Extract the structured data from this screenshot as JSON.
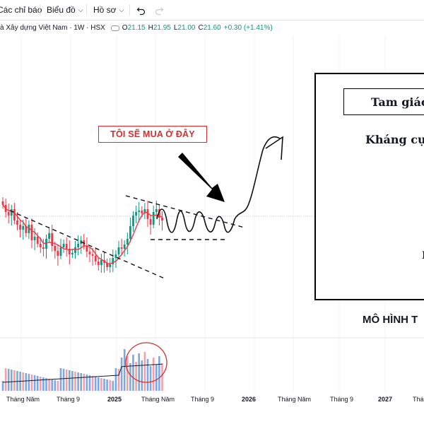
{
  "toolbar": {
    "indicators_label": "Các chỉ báo",
    "chart_label": "Biểu đồ",
    "profile_label": "Hồ sơ",
    "undo_icon": "undo-icon",
    "redo_icon": "redo-icon"
  },
  "legend": {
    "title": "à Xây dựng Việt Nam · 1W · HSX",
    "open_key": "O",
    "open": "21.15",
    "high_key": "H",
    "high": "21.95",
    "low_key": "L",
    "low": "21.00",
    "close_key": "C",
    "close": "21.60",
    "change": "+0.30 (+1.41%)",
    "up_color": "#089981"
  },
  "axis": {
    "labels": [
      "Tháng Năm",
      "Tháng 9",
      "2025",
      "Tháng Năm",
      "Tháng 9",
      "2026",
      "Tháng Năm",
      "Tháng 9",
      "2027",
      "Tháng"
    ]
  },
  "annotation": {
    "buy_text": "TÔI SẼ MUA Ở ĐÂY",
    "color": "#d32f2f"
  },
  "image_panel": {
    "title": "Tam giác",
    "resistance_label": "Kháng cự",
    "support_label_partial": "I"
  },
  "caption": "MÔ HÌNH T",
  "chart_data": {
    "type": "candlestick",
    "series_color_up": "#089981",
    "series_color_down": "#f23645",
    "ma_color": "#f23645",
    "volume_up_color": "#7ea7e6",
    "volume_down_color": "#f4a0a6",
    "last_price": 21.6
  }
}
